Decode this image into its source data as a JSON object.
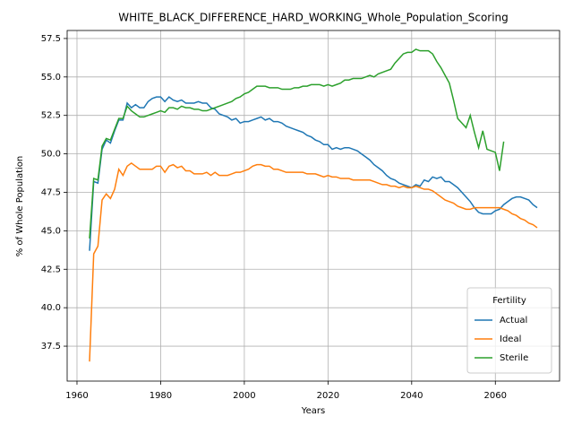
{
  "chart_data": {
    "type": "line",
    "title": "WHITE_BLACK_DIFFERENCE_HARD_WORKING_Whole_Population_Scoring",
    "xlabel": "Years",
    "ylabel": "% of Whole Population",
    "legend_title": "Fertility",
    "legend": "lower right",
    "grid": true,
    "xlim": [
      1957.65,
      2075.35
    ],
    "xticks": [
      1960,
      1980,
      2000,
      2020,
      2040,
      2060
    ],
    "ylim": [
      35.23,
      58.02
    ],
    "yticks": [
      37.5,
      {
        "value": 40,
        "label": "40.0"
      },
      42.5,
      {
        "value": 45,
        "label": "45.0"
      },
      47.5,
      {
        "value": 50,
        "label": "50.0"
      },
      52.5,
      {
        "value": 55,
        "label": "55.0"
      },
      57.5
    ],
    "x": [
      1963,
      1964,
      1965,
      1966,
      1967,
      1968,
      1969,
      1970,
      1971,
      1972,
      1973,
      1974,
      1975,
      1976,
      1977,
      1978,
      1979,
      1980,
      1981,
      1982,
      1983,
      1984,
      1985,
      1986,
      1987,
      1988,
      1989,
      1990,
      1991,
      1992,
      1993,
      1994,
      1995,
      1996,
      1997,
      1998,
      1999,
      2000,
      2001,
      2002,
      2003,
      2004,
      2005,
      2006,
      2007,
      2008,
      2009,
      2010,
      2011,
      2012,
      2013,
      2014,
      2015,
      2016,
      2017,
      2018,
      2019,
      2020,
      2021,
      2022,
      2023,
      2024,
      2025,
      2026,
      2027,
      2028,
      2029,
      2030,
      2031,
      2032,
      2033,
      2034,
      2035,
      2036,
      2037,
      2038,
      2039,
      2040,
      2041,
      2042,
      2043,
      2044,
      2045,
      2046,
      2047,
      2048,
      2049,
      2050,
      2051,
      2052,
      2053,
      2054,
      2055,
      2056,
      2057,
      2058,
      2059,
      2060,
      2061,
      2062,
      2063,
      2064,
      2065,
      2066,
      2067,
      2068,
      2069,
      2070
    ],
    "series": [
      {
        "name": "Actual",
        "color": "#1f77b4",
        "values": [
          43.7,
          48.2,
          48.1,
          50.3,
          50.9,
          50.7,
          51.5,
          52.2,
          52.2,
          53.3,
          53.0,
          53.2,
          53.0,
          53.0,
          53.4,
          53.6,
          53.7,
          53.7,
          53.4,
          53.7,
          53.5,
          53.4,
          53.5,
          53.3,
          53.3,
          53.3,
          53.4,
          53.3,
          53.3,
          53.0,
          52.9,
          52.6,
          52.5,
          52.4,
          52.2,
          52.3,
          52.0,
          52.1,
          52.1,
          52.2,
          52.3,
          52.4,
          52.2,
          52.3,
          52.1,
          52.1,
          52.0,
          51.8,
          51.7,
          51.6,
          51.5,
          51.4,
          51.2,
          51.1,
          50.9,
          50.8,
          50.6,
          50.6,
          50.3,
          50.4,
          50.3,
          50.4,
          50.4,
          50.3,
          50.2,
          50.0,
          49.8,
          49.6,
          49.3,
          49.1,
          48.9,
          48.6,
          48.4,
          48.3,
          48.1,
          48.0,
          47.9,
          47.8,
          48.0,
          47.9,
          48.3,
          48.2,
          48.5,
          48.4,
          48.5,
          48.2,
          48.2,
          48.0,
          47.8,
          47.5,
          47.2,
          46.9,
          46.5,
          46.2,
          46.1,
          46.1,
          46.1,
          46.3,
          46.4,
          46.7,
          46.9,
          47.1,
          47.2,
          47.2,
          47.1,
          47.0,
          46.7,
          46.5
        ]
      },
      {
        "name": "Ideal",
        "color": "#ff7f0e",
        "values": [
          36.5,
          43.5,
          44.0,
          47.0,
          47.4,
          47.1,
          47.7,
          49.0,
          48.6,
          49.2,
          49.4,
          49.2,
          49.0,
          49.0,
          49.0,
          49.0,
          49.2,
          49.2,
          48.8,
          49.2,
          49.3,
          49.1,
          49.2,
          48.9,
          48.9,
          48.7,
          48.7,
          48.7,
          48.8,
          48.6,
          48.8,
          48.6,
          48.6,
          48.6,
          48.7,
          48.8,
          48.8,
          48.9,
          49.0,
          49.2,
          49.3,
          49.3,
          49.2,
          49.2,
          49.0,
          49.0,
          48.9,
          48.8,
          48.8,
          48.8,
          48.8,
          48.8,
          48.7,
          48.7,
          48.7,
          48.6,
          48.5,
          48.6,
          48.5,
          48.5,
          48.4,
          48.4,
          48.4,
          48.3,
          48.3,
          48.3,
          48.3,
          48.3,
          48.2,
          48.1,
          48.0,
          48.0,
          47.9,
          47.9,
          47.8,
          47.9,
          47.8,
          47.8,
          47.9,
          47.8,
          47.7,
          47.7,
          47.6,
          47.4,
          47.2,
          47.0,
          46.9,
          46.8,
          46.6,
          46.5,
          46.4,
          46.4,
          46.5,
          46.5,
          46.5,
          46.5,
          46.5,
          46.5,
          46.5,
          46.4,
          46.3,
          46.1,
          46.0,
          45.8,
          45.7,
          45.5,
          45.4,
          45.2
        ]
      },
      {
        "name": "Sterile",
        "color": "#2ca02c",
        "values": [
          44.5,
          48.4,
          48.3,
          50.5,
          51.0,
          50.9,
          51.6,
          52.3,
          52.3,
          53.1,
          52.8,
          52.6,
          52.4,
          52.4,
          52.5,
          52.6,
          52.7,
          52.8,
          52.7,
          53.0,
          53.0,
          52.9,
          53.1,
          53.0,
          53.0,
          52.9,
          52.9,
          52.8,
          52.8,
          52.9,
          53.0,
          53.1,
          53.2,
          53.3,
          53.4,
          53.6,
          53.7,
          53.9,
          54.0,
          54.2,
          54.4,
          54.4,
          54.4,
          54.3,
          54.3,
          54.3,
          54.2,
          54.2,
          54.2,
          54.3,
          54.3,
          54.4,
          54.4,
          54.5,
          54.5,
          54.5,
          54.4,
          54.5,
          54.4,
          54.5,
          54.6,
          54.8,
          54.8,
          54.9,
          54.9,
          54.9,
          55.0,
          55.1,
          55.0,
          55.2,
          55.3,
          55.4,
          55.5,
          55.9,
          56.2,
          56.5,
          56.6,
          56.6,
          56.8,
          56.7,
          56.7,
          56.7,
          56.5,
          56.0,
          55.6,
          55.1,
          54.6,
          53.5,
          52.3,
          52.0,
          51.7,
          52.5,
          51.4,
          50.4,
          51.5,
          50.3,
          50.2,
          50.1,
          48.9,
          50.8,
          null,
          null,
          null,
          null,
          null,
          null,
          null,
          null
        ]
      }
    ]
  }
}
